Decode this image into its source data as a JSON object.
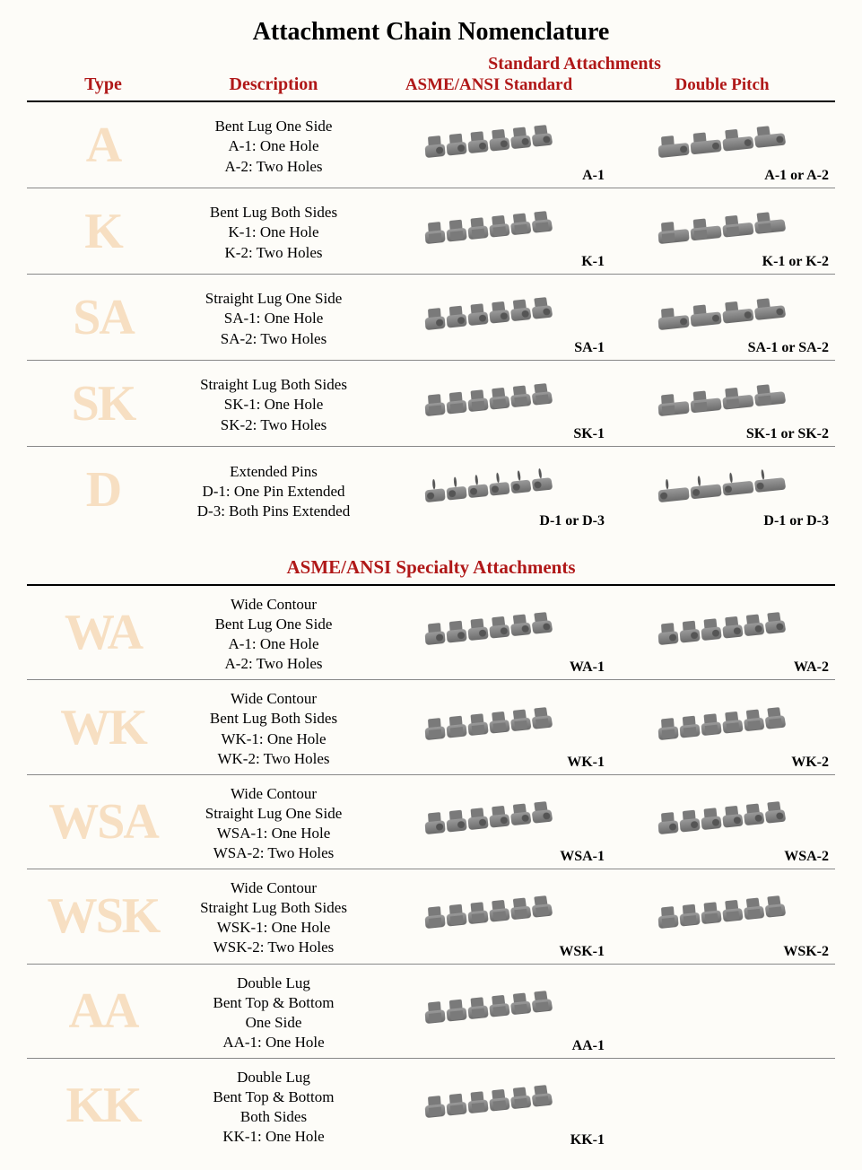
{
  "title": "Attachment Chain Nomenclature",
  "colors": {
    "header_red": "#b01818",
    "type_letter": "#f7dfc2",
    "background": "#fdfcf8",
    "rule": "#000000",
    "row_border": "#888888"
  },
  "fonts": {
    "family": "Times New Roman",
    "title_size": 28,
    "header_size": 20,
    "subheader_size": 19,
    "body_size": 17,
    "type_letter_size": 56,
    "img_label_size": 16
  },
  "headers": {
    "type": "Type",
    "description": "Description",
    "super": "Standard Attachments",
    "col1": "ASME/ANSI Standard",
    "col2": "Double Pitch"
  },
  "section1_rows": [
    {
      "type": "A",
      "desc": [
        "Bent Lug One Side",
        "A-1: One Hole",
        "A-2: Two Holes"
      ],
      "label1": "A-1",
      "label2": "A-1 or A-2"
    },
    {
      "type": "K",
      "desc": [
        "Bent Lug Both Sides",
        "K-1: One Hole",
        "K-2: Two Holes"
      ],
      "label1": "K-1",
      "label2": "K-1 or K-2"
    },
    {
      "type": "SA",
      "desc": [
        "Straight Lug One Side",
        "SA-1: One Hole",
        "SA-2: Two Holes"
      ],
      "label1": "SA-1",
      "label2": "SA-1 or SA-2"
    },
    {
      "type": "SK",
      "desc": [
        "Straight Lug Both Sides",
        "SK-1: One Hole",
        "SK-2: Two Holes"
      ],
      "label1": "SK-1",
      "label2": "SK-1 or SK-2"
    },
    {
      "type": "D",
      "desc": [
        "Extended Pins",
        "D-1: One Pin Extended",
        "D-3: Both Pins Extended"
      ],
      "label1": "D-1 or D-3",
      "label2": "D-1 or D-3"
    }
  ],
  "section2_title": "ASME/ANSI Specialty Attachments",
  "section2_rows": [
    {
      "type": "WA",
      "desc": [
        "Wide Contour",
        "Bent Lug One Side",
        "A-1: One Hole",
        "A-2: Two Holes"
      ],
      "label1": "WA-1",
      "label2": "WA-2"
    },
    {
      "type": "WK",
      "desc": [
        "Wide Contour",
        "Bent Lug Both Sides",
        "WK-1: One Hole",
        "WK-2: Two Holes"
      ],
      "label1": "WK-1",
      "label2": "WK-2"
    },
    {
      "type": "WSA",
      "desc": [
        "Wide Contour",
        "Straight Lug One Side",
        "WSA-1: One Hole",
        "WSA-2: Two Holes"
      ],
      "label1": "WSA-1",
      "label2": "WSA-2"
    },
    {
      "type": "WSK",
      "desc": [
        "Wide Contour",
        "Straight Lug Both Sides",
        "WSK-1: One Hole",
        "WSK-2: Two Holes"
      ],
      "label1": "WSK-1",
      "label2": "WSK-2"
    },
    {
      "type": "AA",
      "desc": [
        "Double Lug",
        "Bent Top & Bottom",
        "One Side",
        "AA-1: One Hole"
      ],
      "label1": "AA-1",
      "label2": ""
    },
    {
      "type": "KK",
      "desc": [
        "Double Lug",
        "Bent Top & Bottom",
        "Both Sides",
        "KK-1: One Hole"
      ],
      "label1": "KK-1",
      "label2": ""
    }
  ],
  "chain_styles": {
    "standard_links": 6,
    "double_pitch_links": 4,
    "link_colors": [
      "#9a9a9a",
      "#6b6b6b"
    ],
    "lug_color": "#7a7a7a",
    "pin_color": "#555555"
  }
}
